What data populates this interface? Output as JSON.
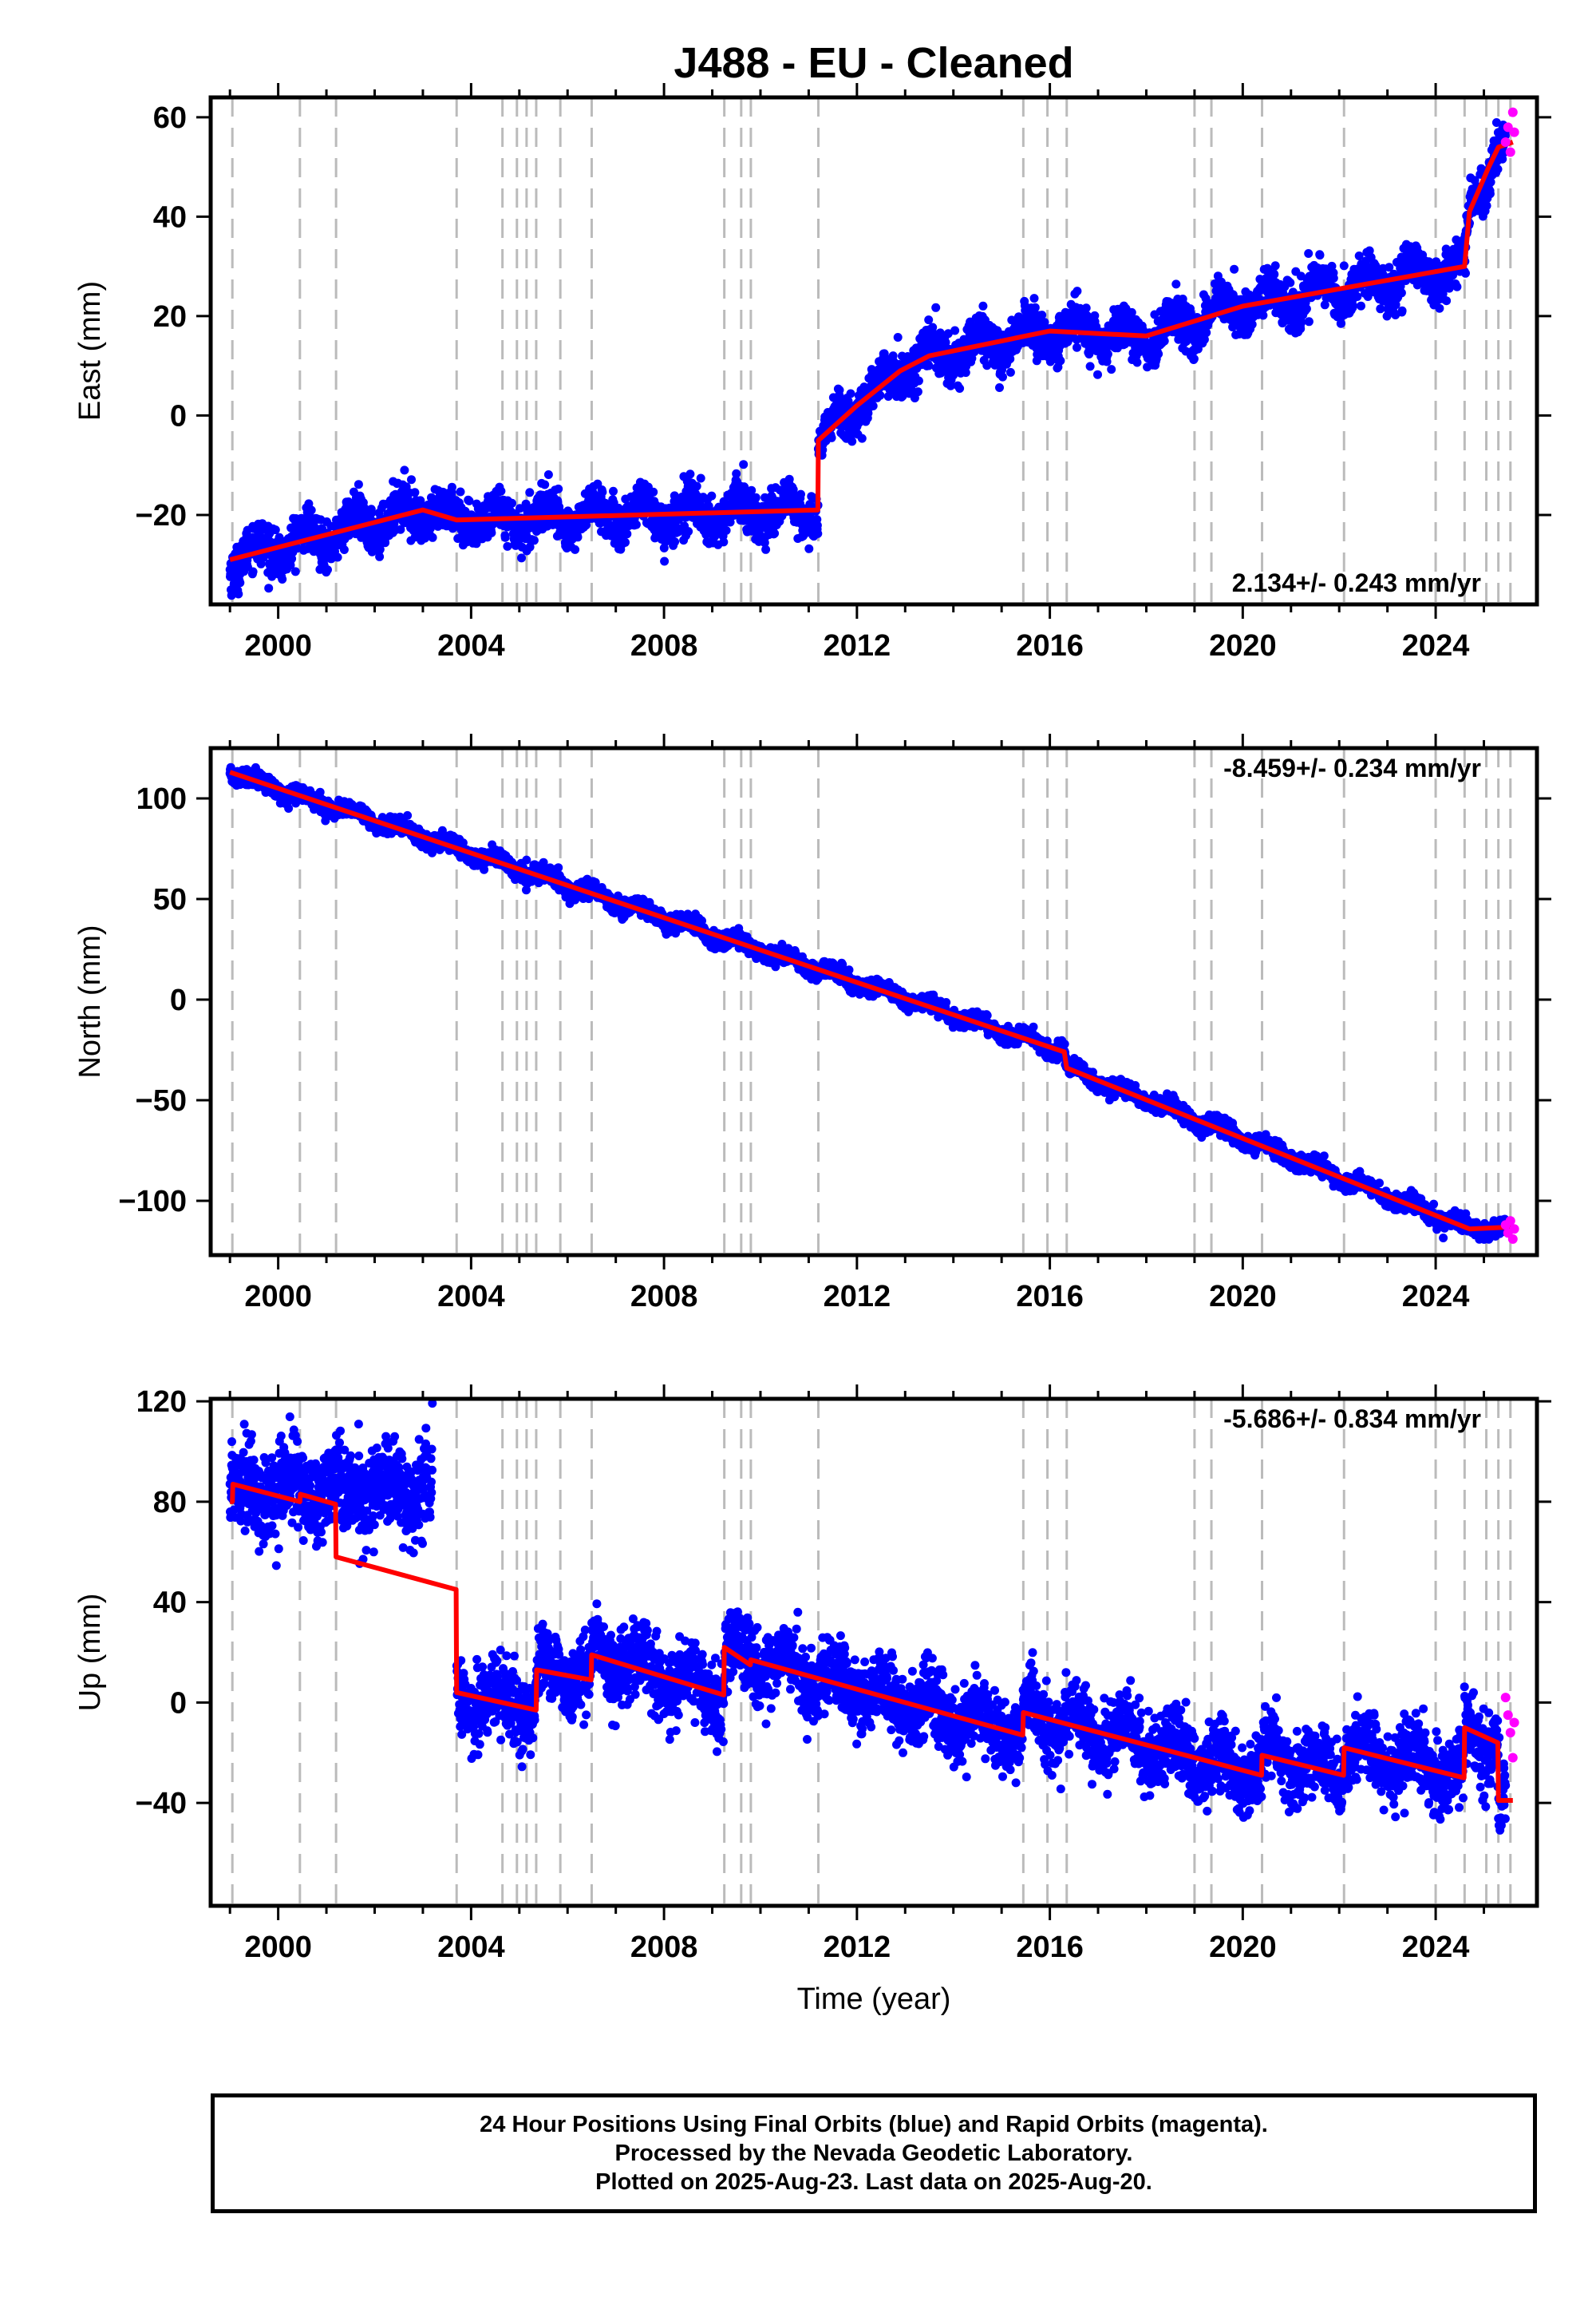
{
  "title": "J488  - EU - Cleaned",
  "xlabel": "Time (year)",
  "colors": {
    "final": "#0000ff",
    "rapid": "#ff00ff",
    "model": "#ff0000",
    "steps": "#bbbbbb",
    "axis": "#000000"
  },
  "footer": {
    "line1": "24 Hour Positions Using Final Orbits (blue) and Rapid Orbits (magenta).",
    "line2": "Processed by the Nevada Geodetic Laboratory.",
    "line3": "Plotted on 2025-Aug-23. Last data on 2025-Aug-20."
  },
  "chart_data": [
    {
      "type": "scatter",
      "ylabel": "East (mm)",
      "xlim": [
        1998.6,
        2026.1
      ],
      "ylim": [
        -38,
        64
      ],
      "xticks": [
        "2000",
        "2004",
        "2008",
        "2012",
        "2016",
        "2020",
        "2024"
      ],
      "yticks": [
        "60",
        "40",
        "20",
        "0",
        "−20"
      ],
      "rate_label": "2.134+/- 0.243 mm/yr",
      "rate_mm_yr": 2.134,
      "rate_sigma": 0.243,
      "annual_amp": 2.6,
      "noise": 2.2,
      "step_epochs": [
        1999.05,
        2000.45,
        2001.2,
        2003.7,
        2004.65,
        2004.95,
        2005.15,
        2005.35,
        2005.85,
        2006.5,
        2009.25,
        2009.6,
        2009.8,
        2011.2,
        2015.45,
        2015.95,
        2016.35,
        2019.0,
        2019.35,
        2020.4,
        2022.1,
        2024.0,
        2024.6,
        2025.05,
        2025.3,
        2025.55
      ],
      "series": [
        {
          "name": "model",
          "x": [
            1999.0,
            2003.0,
            2003.7,
            2011.19,
            2011.2,
            2012.0,
            2012.9,
            2013.5,
            2016.0,
            2018.0,
            2020.0,
            2024.6,
            2024.7,
            2025.1,
            2025.3,
            2025.6
          ],
          "y": [
            -29,
            -19,
            -21,
            -19,
            -5,
            2,
            9,
            12,
            17,
            16,
            22,
            30,
            41,
            50,
            54,
            55
          ]
        },
        {
          "name": "rapid",
          "x": [
            2025.45,
            2025.5,
            2025.55,
            2025.6,
            2025.63
          ],
          "y": [
            55,
            58,
            53,
            61,
            57
          ]
        }
      ]
    },
    {
      "type": "scatter",
      "ylabel": "North (mm)",
      "xlim": [
        1998.6,
        2026.1
      ],
      "ylim": [
        -127,
        125
      ],
      "xticks": [
        "2000",
        "2004",
        "2008",
        "2012",
        "2016",
        "2020",
        "2024"
      ],
      "yticks": [
        "100",
        "50",
        "0",
        "−50",
        "−100"
      ],
      "rate_label": "-8.459+/- 0.234 mm/yr",
      "rate_mm_yr": -8.459,
      "rate_sigma": 0.234,
      "annual_amp": 2.2,
      "noise": 2.0,
      "step_epochs": [
        1999.05,
        2000.45,
        2001.2,
        2003.7,
        2004.65,
        2004.95,
        2005.15,
        2005.35,
        2005.85,
        2006.5,
        2009.25,
        2009.6,
        2009.8,
        2011.2,
        2015.45,
        2015.95,
        2016.35,
        2019.0,
        2019.35,
        2020.4,
        2022.1,
        2024.0,
        2024.6,
        2025.05,
        2025.3,
        2025.55
      ],
      "series": [
        {
          "name": "model",
          "x": [
            1999.0,
            2016.3,
            2016.35,
            2024.7,
            2025.6
          ],
          "y": [
            113,
            -26,
            -34,
            -114,
            -113
          ]
        },
        {
          "name": "rapid",
          "x": [
            2025.45,
            2025.5,
            2025.55,
            2025.6,
            2025.63
          ],
          "y": [
            -112,
            -116,
            -110,
            -119,
            -114
          ]
        }
      ]
    },
    {
      "type": "scatter",
      "ylabel": "Up (mm)",
      "xlim": [
        1998.6,
        2026.1
      ],
      "ylim": [
        -81,
        121
      ],
      "xticks": [
        "2000",
        "2004",
        "2008",
        "2012",
        "2016",
        "2020",
        "2024"
      ],
      "yticks": [
        "120",
        "80",
        "40",
        "0",
        "−40"
      ],
      "rate_label": "-5.686+/- 0.834 mm/yr",
      "rate_mm_yr": -5.686,
      "rate_sigma": 0.834,
      "annual_amp": 6.0,
      "noise": 7.0,
      "step_epochs": [
        1999.05,
        2000.45,
        2001.2,
        2003.7,
        2004.65,
        2004.95,
        2005.15,
        2005.35,
        2005.85,
        2006.5,
        2009.25,
        2009.6,
        2009.8,
        2011.2,
        2015.45,
        2015.95,
        2016.35,
        2019.0,
        2019.35,
        2020.4,
        2022.1,
        2024.0,
        2024.6,
        2025.05,
        2025.3,
        2025.55
      ],
      "series": [
        {
          "name": "model",
          "x": [
            1999.0,
            1999.05,
            1999.06,
            2000.45,
            2000.46,
            2001.19,
            2001.2,
            2003.69,
            2003.7,
            2005.35,
            2005.36,
            2006.49,
            2006.5,
            2009.24,
            2009.25,
            2009.79,
            2009.8,
            2015.44,
            2015.45,
            2020.39,
            2020.4,
            2022.09,
            2022.1,
            2024.59,
            2024.6,
            2025.29,
            2025.3,
            2025.6
          ],
          "y": [
            80,
            80,
            87,
            80,
            83,
            79,
            58,
            45,
            4,
            -3,
            13,
            9,
            19,
            3,
            22,
            15,
            17,
            -13,
            -4,
            -29,
            -21,
            -29,
            -18,
            -30,
            -10,
            -16,
            -39,
            -39
          ]
        },
        {
          "name": "rapid",
          "x": [
            2025.45,
            2025.5,
            2025.55,
            2025.6,
            2025.63
          ],
          "y": [
            2,
            -5,
            -12,
            -22,
            -8
          ]
        }
      ]
    }
  ]
}
